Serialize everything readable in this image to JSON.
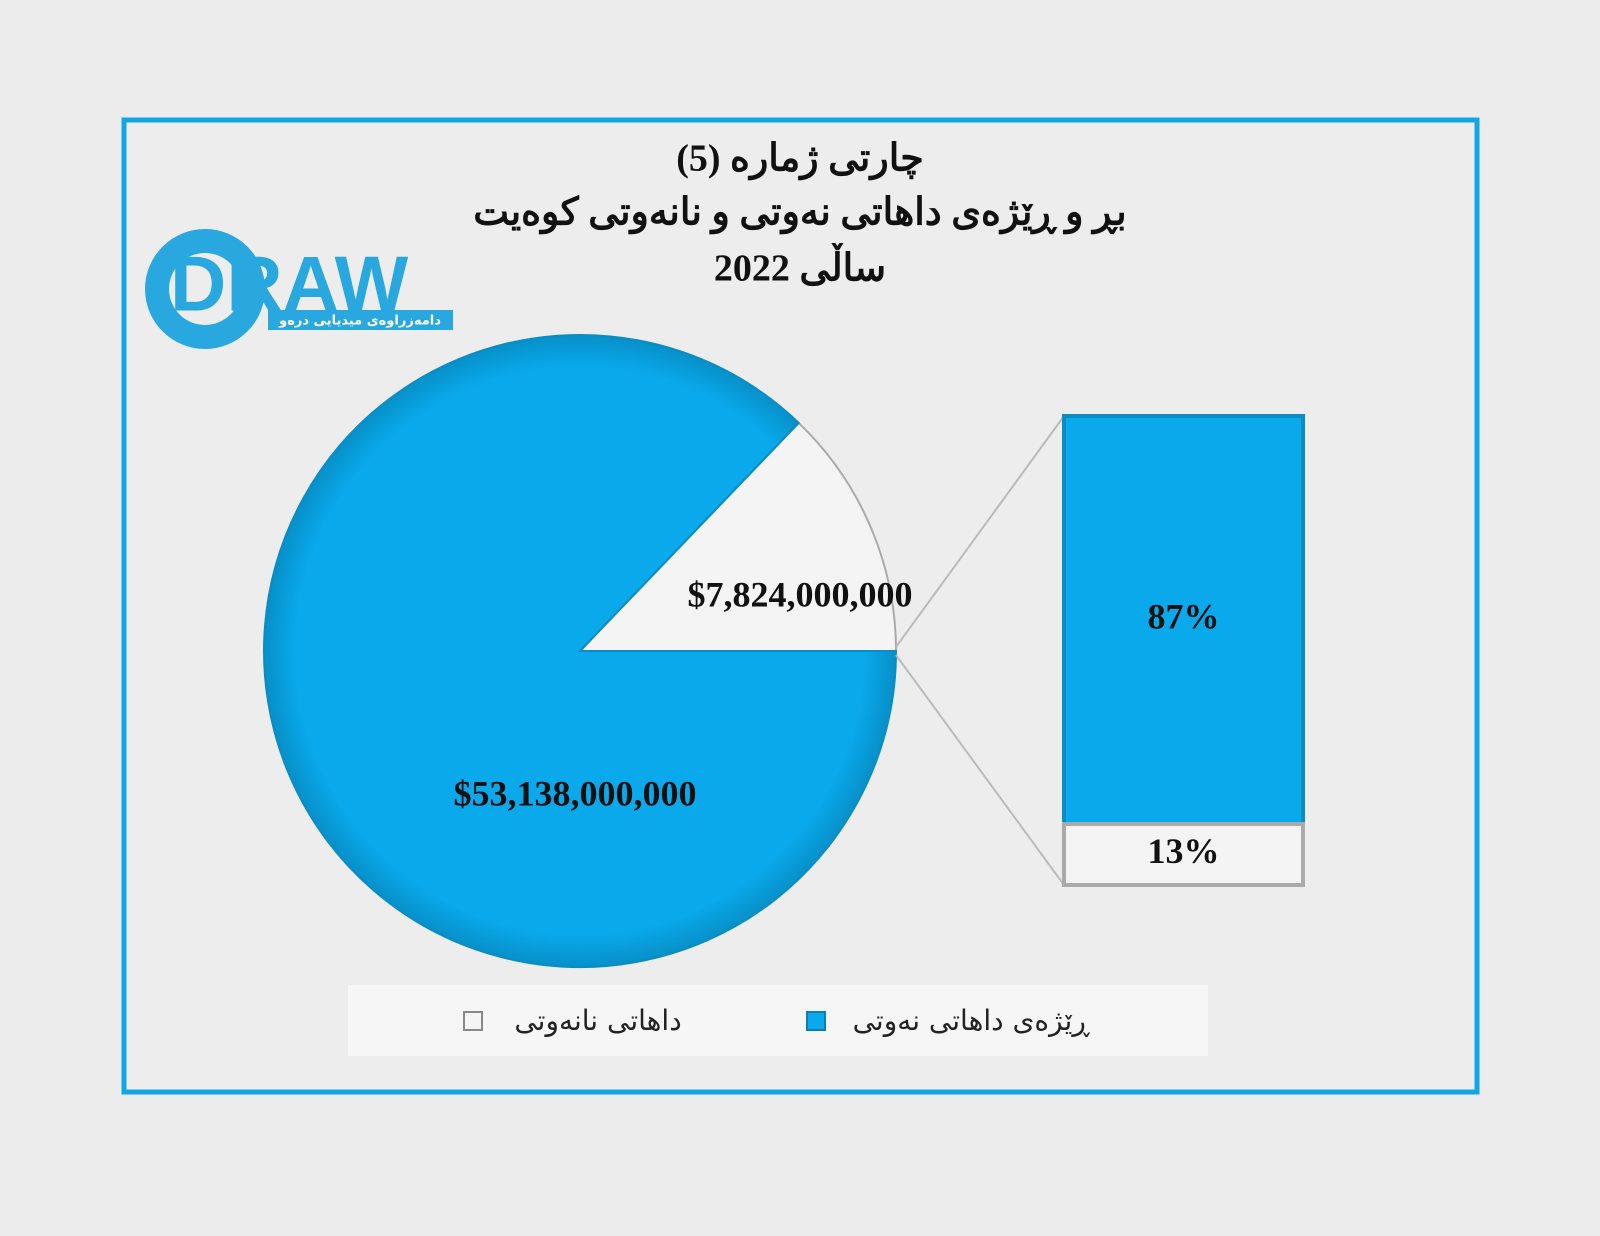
{
  "chart_data": {
    "type": "pie-of-bar",
    "title": [
      "چارتی ژمارە (5)",
      "بڕ و ڕێژەی داهاتی نەوتی و نانەوتی کوەیت",
      "ساڵی 2022"
    ],
    "categories": [
      "ڕێژەی داهاتی نەوتی",
      "داهاتی نانەوتی"
    ],
    "colors": [
      "#09a9eb",
      "#f4f4f4"
    ],
    "values": [
      53138000000,
      7824000000
    ],
    "value_labels": [
      "$53,138,000,000",
      "$7,824,000,000"
    ],
    "bar": {
      "values": [
        87,
        13
      ],
      "value_labels": [
        "87%",
        "13%"
      ]
    }
  },
  "logo": {
    "text": "DRAW",
    "subtitle": "دامەزراوەی میدیایی درەو"
  }
}
